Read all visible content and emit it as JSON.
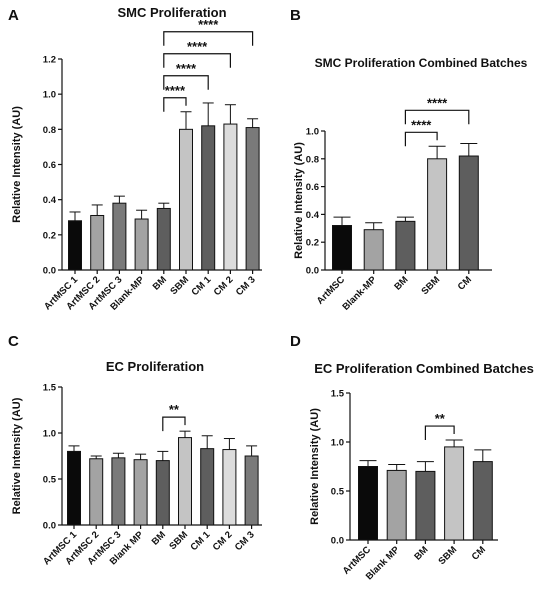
{
  "figure": {
    "panels": [
      "A",
      "B",
      "C",
      "D"
    ]
  },
  "chart_data": [
    {
      "panel": "A",
      "type": "bar",
      "title": "SMC Proliferation",
      "xlabel": "",
      "ylabel": "Relative Intensity (AU)",
      "ylim": [
        0,
        1.2
      ],
      "yticks": [
        "0.0",
        "0.2",
        "0.4",
        "0.6",
        "0.8",
        "1.0",
        "1.2"
      ],
      "categories": [
        "ArtMSC 1",
        "ArtMSC 2",
        "ArtMSC 3",
        "Blank-MP",
        "BM",
        "SBM",
        "CM 1",
        "CM 2",
        "CM 3"
      ],
      "values": [
        0.28,
        0.31,
        0.38,
        0.29,
        0.35,
        0.8,
        0.82,
        0.83,
        0.81
      ],
      "errors": [
        0.05,
        0.06,
        0.04,
        0.05,
        0.03,
        0.1,
        0.13,
        0.11,
        0.05
      ],
      "colors": [
        "#0a0a0a",
        "#a3a3a3",
        "#7a7a7a",
        "#a3a3a3",
        "#5e5e5e",
        "#c4c4c4",
        "#5e5e5e",
        "#dcdcdc",
        "#7a7a7a"
      ],
      "significance": [
        {
          "from": "BM",
          "to": "SBM",
          "label": "****"
        },
        {
          "from": "BM",
          "to": "CM 1",
          "label": "****"
        },
        {
          "from": "BM",
          "to": "CM 2",
          "label": "****"
        },
        {
          "from": "BM",
          "to": "CM 3",
          "label": "****"
        }
      ],
      "grid": false
    },
    {
      "panel": "B",
      "type": "bar",
      "title": "SMC Proliferation Combined Batches",
      "xlabel": "",
      "ylabel": "Relative Intensity (AU)",
      "ylim": [
        0,
        1.0
      ],
      "yticks": [
        "0.0",
        "0.2",
        "0.4",
        "0.6",
        "0.8",
        "1.0"
      ],
      "categories": [
        "ArtMSC",
        "Blank-MP",
        "BM",
        "SBM",
        "CM"
      ],
      "values": [
        0.32,
        0.29,
        0.35,
        0.8,
        0.82
      ],
      "errors": [
        0.06,
        0.05,
        0.03,
        0.09,
        0.09
      ],
      "colors": [
        "#0a0a0a",
        "#a3a3a3",
        "#5e5e5e",
        "#c4c4c4",
        "#5e5e5e"
      ],
      "significance": [
        {
          "from": "BM",
          "to": "SBM",
          "label": "****"
        },
        {
          "from": "BM",
          "to": "CM",
          "label": "****"
        }
      ],
      "grid": false
    },
    {
      "panel": "C",
      "type": "bar",
      "title": "EC Proliferation",
      "xlabel": "",
      "ylabel": "Relative Intensity (AU)",
      "ylim": [
        0,
        1.5
      ],
      "yticks": [
        "0.0",
        "0.5",
        "1.0",
        "1.5"
      ],
      "categories": [
        "ArtMSC 1",
        "ArtMSC 2",
        "ArtMSC 3",
        "Blank MP",
        "BM",
        "SBM",
        "CM 1",
        "CM 2",
        "CM 3"
      ],
      "values": [
        0.8,
        0.72,
        0.73,
        0.71,
        0.7,
        0.95,
        0.83,
        0.82,
        0.75
      ],
      "errors": [
        0.06,
        0.03,
        0.05,
        0.06,
        0.1,
        0.07,
        0.14,
        0.12,
        0.11
      ],
      "colors": [
        "#0a0a0a",
        "#a3a3a3",
        "#7a7a7a",
        "#a3a3a3",
        "#5e5e5e",
        "#c4c4c4",
        "#5e5e5e",
        "#dcdcdc",
        "#7a7a7a"
      ],
      "significance": [
        {
          "from": "BM",
          "to": "SBM",
          "label": "**"
        }
      ],
      "grid": false
    },
    {
      "panel": "D",
      "type": "bar",
      "title": "EC Proliferation Combined Batches",
      "xlabel": "",
      "ylabel": "Relative Intensity (AU)",
      "ylim": [
        0,
        1.5
      ],
      "yticks": [
        "0.0",
        "0.5",
        "1.0",
        "1.5"
      ],
      "categories": [
        "ArtMSC",
        "Blank MP",
        "BM",
        "SBM",
        "CM"
      ],
      "values": [
        0.75,
        0.71,
        0.7,
        0.95,
        0.8
      ],
      "errors": [
        0.06,
        0.06,
        0.1,
        0.07,
        0.12
      ],
      "colors": [
        "#0a0a0a",
        "#a3a3a3",
        "#5e5e5e",
        "#c4c4c4",
        "#5e5e5e"
      ],
      "significance": [
        {
          "from": "BM",
          "to": "SBM",
          "label": "**"
        }
      ],
      "grid": false
    }
  ]
}
